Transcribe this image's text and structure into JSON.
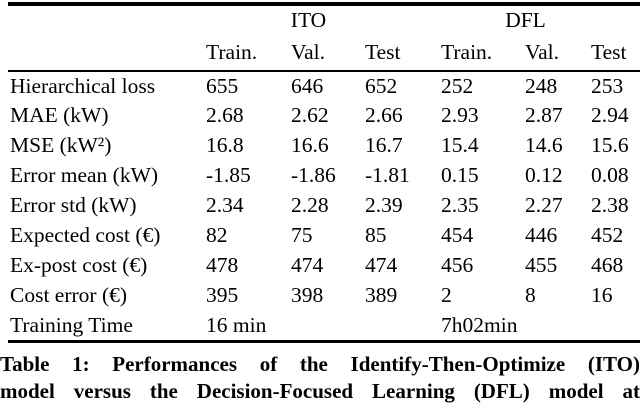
{
  "colors": {
    "text": "#000000",
    "background": "#ffffff",
    "rule": "#000000"
  },
  "table": {
    "group_headers": [
      "ITO",
      "DFL"
    ],
    "col_headers": [
      "Train.",
      "Val.",
      "Test",
      "Train.",
      "Val.",
      "Test"
    ],
    "rows": [
      {
        "label": "Hierarchical loss",
        "cells": [
          {
            "text": "655"
          },
          {
            "text": "646"
          },
          {
            "text": "652"
          },
          {
            "text": "252"
          },
          {
            "text": "248"
          },
          {
            "text": "253"
          }
        ]
      },
      {
        "label": "MAE (kW)",
        "cells": [
          {
            "text": "2.68"
          },
          {
            "text": "2.62"
          },
          {
            "text": "2.66"
          },
          {
            "text": "2.93"
          },
          {
            "text": "2.87"
          },
          {
            "text": "2.94"
          }
        ]
      },
      {
        "label": "MSE (kW²)",
        "cells": [
          {
            "text": "16.8"
          },
          {
            "text": "16.6"
          },
          {
            "text": "16.7"
          },
          {
            "text": "15.4"
          },
          {
            "text": "14.6"
          },
          {
            "text": "15.6"
          }
        ]
      },
      {
        "label": "Error mean (kW)",
        "cells": [
          {
            "text": "-1.85"
          },
          {
            "text": "-1.86"
          },
          {
            "text": "-1.81"
          },
          {
            "text": "0.15"
          },
          {
            "text": "0.12"
          },
          {
            "text": "0.08"
          }
        ]
      },
      {
        "label": "Error std (kW)",
        "cells": [
          {
            "text": "2.34"
          },
          {
            "text": "2.28"
          },
          {
            "text": "2.39"
          },
          {
            "text": "2.35"
          },
          {
            "text": "2.27"
          },
          {
            "text": "2.38"
          }
        ]
      },
      {
        "label": "Expected cost (€)",
        "cells": [
          {
            "text": "82"
          },
          {
            "text": "75"
          },
          {
            "text": "85"
          },
          {
            "text": "454"
          },
          {
            "text": "446"
          },
          {
            "text": "452"
          }
        ]
      },
      {
        "label": "Ex-post cost (€)",
        "cells": [
          {
            "text": "478"
          },
          {
            "text": "474"
          },
          {
            "text": "474"
          },
          {
            "text": "456"
          },
          {
            "text": "455"
          },
          {
            "text": "468"
          }
        ]
      },
      {
        "label": "Cost error (€)",
        "cells": [
          {
            "text": "395"
          },
          {
            "text": "398"
          },
          {
            "text": "389"
          },
          {
            "text": "2"
          },
          {
            "text": "8"
          },
          {
            "text": "16"
          }
        ]
      },
      {
        "label": "Training Time",
        "cells": [
          {
            "text": "16 min",
            "colspan": 3
          },
          {
            "text": "7h02min",
            "colspan": 3
          }
        ]
      }
    ]
  },
  "caption": {
    "line1": "Table 1: Performances of the Identify-Then-Optimize (ITO)",
    "line2": "model versus the Decision-Focused Learning (DFL) model at"
  }
}
